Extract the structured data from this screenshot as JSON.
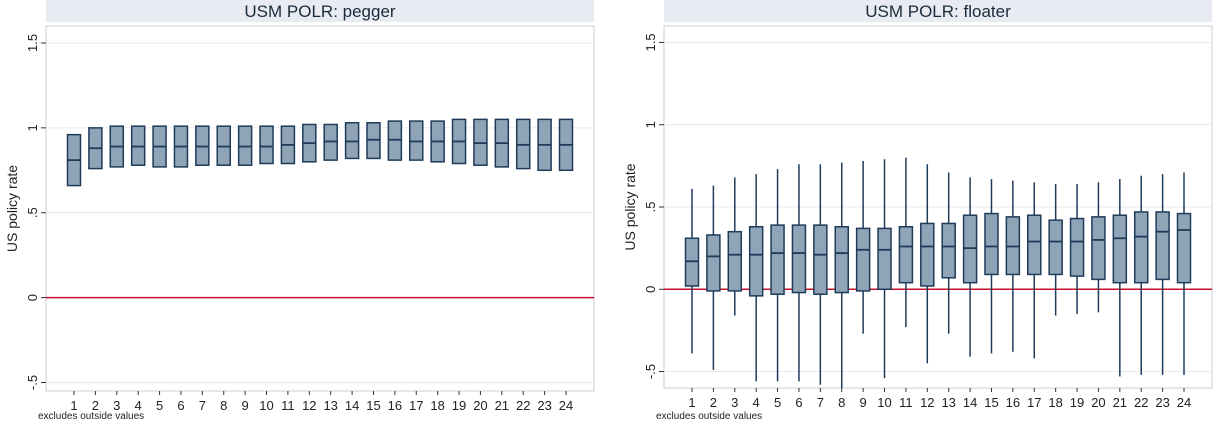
{
  "chart_data": [
    {
      "type": "box",
      "title": "USM POLR: pegger",
      "ylabel": "US policy rate",
      "note": "excludes outside values",
      "ylim": [
        -0.55,
        1.6
      ],
      "yticks": [
        -0.5,
        0,
        0.5,
        1,
        1.5
      ],
      "ytick_labels": [
        "-.5",
        "0",
        ".5",
        "1",
        "1.5"
      ],
      "reference_line": 0,
      "categories": [
        "1",
        "2",
        "3",
        "4",
        "5",
        "6",
        "7",
        "8",
        "9",
        "10",
        "11",
        "12",
        "13",
        "14",
        "15",
        "16",
        "17",
        "18",
        "19",
        "20",
        "21",
        "22",
        "23",
        "24"
      ],
      "boxes": [
        {
          "q1": 0.66,
          "median": 0.81,
          "q3": 0.96
        },
        {
          "q1": 0.76,
          "median": 0.88,
          "q3": 1.0
        },
        {
          "q1": 0.77,
          "median": 0.89,
          "q3": 1.01
        },
        {
          "q1": 0.78,
          "median": 0.89,
          "q3": 1.01
        },
        {
          "q1": 0.77,
          "median": 0.89,
          "q3": 1.01
        },
        {
          "q1": 0.77,
          "median": 0.89,
          "q3": 1.01
        },
        {
          "q1": 0.78,
          "median": 0.89,
          "q3": 1.01
        },
        {
          "q1": 0.78,
          "median": 0.89,
          "q3": 1.01
        },
        {
          "q1": 0.78,
          "median": 0.89,
          "q3": 1.01
        },
        {
          "q1": 0.79,
          "median": 0.89,
          "q3": 1.01
        },
        {
          "q1": 0.79,
          "median": 0.9,
          "q3": 1.01
        },
        {
          "q1": 0.8,
          "median": 0.91,
          "q3": 1.02
        },
        {
          "q1": 0.81,
          "median": 0.92,
          "q3": 1.02
        },
        {
          "q1": 0.82,
          "median": 0.92,
          "q3": 1.03
        },
        {
          "q1": 0.82,
          "median": 0.93,
          "q3": 1.03
        },
        {
          "q1": 0.81,
          "median": 0.93,
          "q3": 1.04
        },
        {
          "q1": 0.81,
          "median": 0.92,
          "q3": 1.04
        },
        {
          "q1": 0.8,
          "median": 0.92,
          "q3": 1.04
        },
        {
          "q1": 0.79,
          "median": 0.92,
          "q3": 1.05
        },
        {
          "q1": 0.78,
          "median": 0.91,
          "q3": 1.05
        },
        {
          "q1": 0.77,
          "median": 0.91,
          "q3": 1.05
        },
        {
          "q1": 0.76,
          "median": 0.9,
          "q3": 1.05
        },
        {
          "q1": 0.75,
          "median": 0.9,
          "q3": 1.05
        },
        {
          "q1": 0.75,
          "median": 0.9,
          "q3": 1.05
        }
      ]
    },
    {
      "type": "box",
      "title": "USM POLR: floater",
      "ylabel": "US policy rate",
      "note": "excludes outside values",
      "ylim": [
        -0.6,
        1.6
      ],
      "yticks": [
        -0.5,
        0,
        0.5,
        1,
        1.5
      ],
      "ytick_labels": [
        "-.5",
        "0",
        ".5",
        "1",
        "1.5"
      ],
      "reference_line": 0,
      "categories": [
        "1",
        "2",
        "3",
        "4",
        "5",
        "6",
        "7",
        "8",
        "9",
        "10",
        "11",
        "12",
        "13",
        "14",
        "15",
        "16",
        "17",
        "18",
        "19",
        "20",
        "21",
        "22",
        "23",
        "24"
      ],
      "boxes": [
        {
          "whisker_low": -0.39,
          "q1": 0.02,
          "median": 0.17,
          "q3": 0.31,
          "whisker_high": 0.61
        },
        {
          "whisker_low": -0.49,
          "q1": -0.01,
          "median": 0.2,
          "q3": 0.33,
          "whisker_high": 0.63
        },
        {
          "whisker_low": -0.16,
          "q1": -0.01,
          "median": 0.21,
          "q3": 0.35,
          "whisker_high": 0.68
        },
        {
          "whisker_low": -0.56,
          "q1": -0.04,
          "median": 0.21,
          "q3": 0.38,
          "whisker_high": 0.7
        },
        {
          "whisker_low": -0.56,
          "q1": -0.03,
          "median": 0.22,
          "q3": 0.39,
          "whisker_high": 0.73
        },
        {
          "whisker_low": -0.56,
          "q1": -0.02,
          "median": 0.22,
          "q3": 0.39,
          "whisker_high": 0.76
        },
        {
          "whisker_low": -0.58,
          "q1": -0.03,
          "median": 0.21,
          "q3": 0.39,
          "whisker_high": 0.76
        },
        {
          "whisker_low": -0.6,
          "q1": -0.02,
          "median": 0.22,
          "q3": 0.38,
          "whisker_high": 0.77
        },
        {
          "whisker_low": -0.27,
          "q1": -0.01,
          "median": 0.24,
          "q3": 0.37,
          "whisker_high": 0.78
        },
        {
          "whisker_low": -0.54,
          "q1": 0.0,
          "median": 0.24,
          "q3": 0.37,
          "whisker_high": 0.79
        },
        {
          "whisker_low": -0.23,
          "q1": 0.04,
          "median": 0.26,
          "q3": 0.38,
          "whisker_high": 0.8
        },
        {
          "whisker_low": -0.45,
          "q1": 0.02,
          "median": 0.26,
          "q3": 0.4,
          "whisker_high": 0.76
        },
        {
          "whisker_low": -0.27,
          "q1": 0.07,
          "median": 0.26,
          "q3": 0.4,
          "whisker_high": 0.71
        },
        {
          "whisker_low": -0.41,
          "q1": 0.04,
          "median": 0.25,
          "q3": 0.45,
          "whisker_high": 0.68
        },
        {
          "whisker_low": -0.39,
          "q1": 0.09,
          "median": 0.26,
          "q3": 0.46,
          "whisker_high": 0.67
        },
        {
          "whisker_low": -0.38,
          "q1": 0.09,
          "median": 0.26,
          "q3": 0.44,
          "whisker_high": 0.66
        },
        {
          "whisker_low": -0.42,
          "q1": 0.09,
          "median": 0.29,
          "q3": 0.45,
          "whisker_high": 0.65
        },
        {
          "whisker_low": -0.16,
          "q1": 0.09,
          "median": 0.29,
          "q3": 0.42,
          "whisker_high": 0.64
        },
        {
          "whisker_low": -0.15,
          "q1": 0.08,
          "median": 0.29,
          "q3": 0.43,
          "whisker_high": 0.64
        },
        {
          "whisker_low": -0.14,
          "q1": 0.06,
          "median": 0.3,
          "q3": 0.44,
          "whisker_high": 0.65
        },
        {
          "whisker_low": -0.53,
          "q1": 0.04,
          "median": 0.31,
          "q3": 0.45,
          "whisker_high": 0.67
        },
        {
          "whisker_low": -0.52,
          "q1": 0.04,
          "median": 0.32,
          "q3": 0.47,
          "whisker_high": 0.69
        },
        {
          "whisker_low": -0.52,
          "q1": 0.06,
          "median": 0.35,
          "q3": 0.47,
          "whisker_high": 0.7
        },
        {
          "whisker_low": -0.52,
          "q1": 0.04,
          "median": 0.36,
          "q3": 0.46,
          "whisker_high": 0.71
        }
      ]
    }
  ],
  "colors": {
    "box_fill": "#90a4b8",
    "box_stroke": "#1f3b5a",
    "reference_line": "#c8102e",
    "grid": "#e6eaee",
    "title_bar": "#e8ecf2",
    "title_text": "#1a2a3a",
    "axis_text": "#222222"
  }
}
